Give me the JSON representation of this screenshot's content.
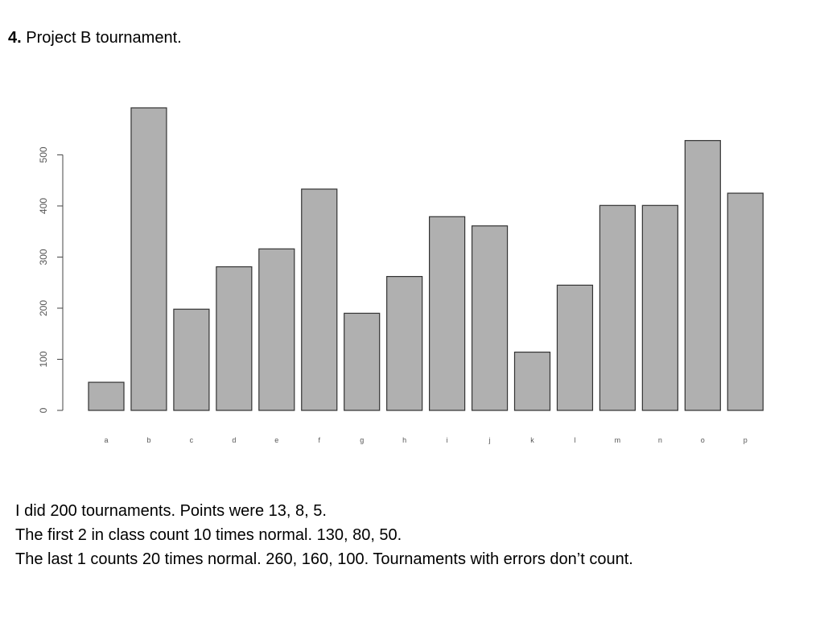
{
  "heading": {
    "number": "4.",
    "title": "Project B tournament."
  },
  "chart_data": {
    "type": "bar",
    "categories": [
      "a",
      "b",
      "c",
      "d",
      "e",
      "f",
      "g",
      "h",
      "i",
      "j",
      "k",
      "l",
      "m",
      "n",
      "o",
      "p"
    ],
    "values": [
      55,
      592,
      198,
      281,
      316,
      433,
      190,
      262,
      379,
      361,
      114,
      245,
      401,
      401,
      528,
      425
    ],
    "yticks": [
      0,
      100,
      200,
      300,
      400,
      500
    ],
    "ylim": [
      0,
      592
    ],
    "grid": false,
    "colors": {
      "bar_fill": "#b0b0b0",
      "bar_stroke": "#333333",
      "axis": "#444444"
    }
  },
  "notes": [
    "I did 200 tournaments. Points were 13, 8, 5.",
    "The first 2 in class count 10 times normal. 130, 80, 50.",
    "The last 1 counts 20 times normal. 260, 160, 100. Tournaments with errors don’t count."
  ]
}
